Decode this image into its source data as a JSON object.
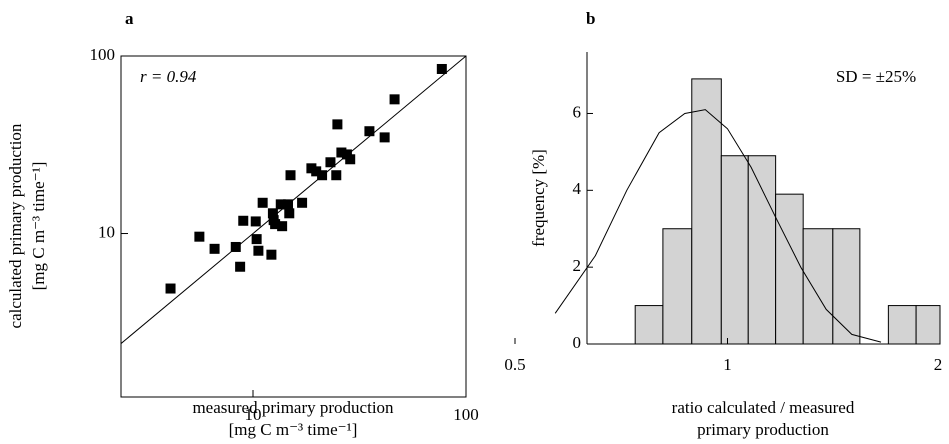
{
  "chart_data": [
    {
      "type": "scatter",
      "title": "a",
      "x_label": [
        "measured primary production",
        "[mg C m⁻³ time⁻¹]"
      ],
      "y_label": [
        "calculated primary production",
        "[mg C m⁻³ time⁻¹]"
      ],
      "annotation": "r = 0.94",
      "x": [
        4.1,
        5.6,
        6.6,
        8.3,
        8.7,
        9.0,
        10.3,
        10.4,
        10.6,
        12.2,
        11.1,
        12.4,
        12.5,
        12.7,
        13.5,
        13.7,
        14.8,
        14.6,
        15.0,
        17.0,
        18.8,
        19.8,
        21.1,
        23.1,
        24.6,
        24.9,
        26.0,
        27.6,
        28.6,
        35.2,
        41.5,
        46.2,
        77
      ],
      "y": [
        4.9,
        9.6,
        8.2,
        8.4,
        6.5,
        11.8,
        11.7,
        9.3,
        8.0,
        7.6,
        14.9,
        13.0,
        11.9,
        11.3,
        14.6,
        11.0,
        13.0,
        14.6,
        21.3,
        14.9,
        23.3,
        22.4,
        21.3,
        25.2,
        21.3,
        41.2,
        28.6,
        27.9,
        26.2,
        37.7,
        34.8,
        57.0,
        84.5
      ],
      "color": "#000000",
      "xlim": [
        2.4,
        100
      ],
      "ylim": [
        1.2,
        100
      ],
      "xticks": [
        10,
        100
      ],
      "yticks": [
        10,
        100
      ],
      "xscale": "log",
      "yscale": "log"
    },
    {
      "type": "histogram",
      "title": "b",
      "x_label": [
        "ratio calculated / measured",
        "primary production"
      ],
      "y_label": "frequency  [%]",
      "annotation": "SD = ±25%",
      "bins": [
        0.74,
        0.81,
        0.89,
        0.98,
        1.07,
        1.17,
        1.28,
        1.41,
        1.54,
        1.69,
        1.85,
        2.0
      ],
      "values": [
        1,
        3,
        6.9,
        4.9,
        4.9,
        3.9,
        3,
        3,
        0,
        1,
        1
      ],
      "color": "#d3d3d3",
      "fit": {
        "x": [
          0.57,
          0.65,
          0.72,
          0.8,
          0.87,
          0.93,
          1.0,
          1.08,
          1.17,
          1.27,
          1.38,
          1.5,
          1.65
        ],
        "y": [
          0.8,
          2.3,
          4.0,
          5.5,
          6.0,
          6.1,
          5.6,
          4.6,
          3.3,
          2.0,
          0.9,
          0.25,
          0.05
        ]
      },
      "xlim": [
        0.5,
        2
      ],
      "ylim": [
        0,
        7.6
      ],
      "xticks": [
        0.5,
        1,
        2
      ],
      "yticks": [
        0,
        2,
        4,
        6
      ],
      "xscale": "log"
    }
  ]
}
